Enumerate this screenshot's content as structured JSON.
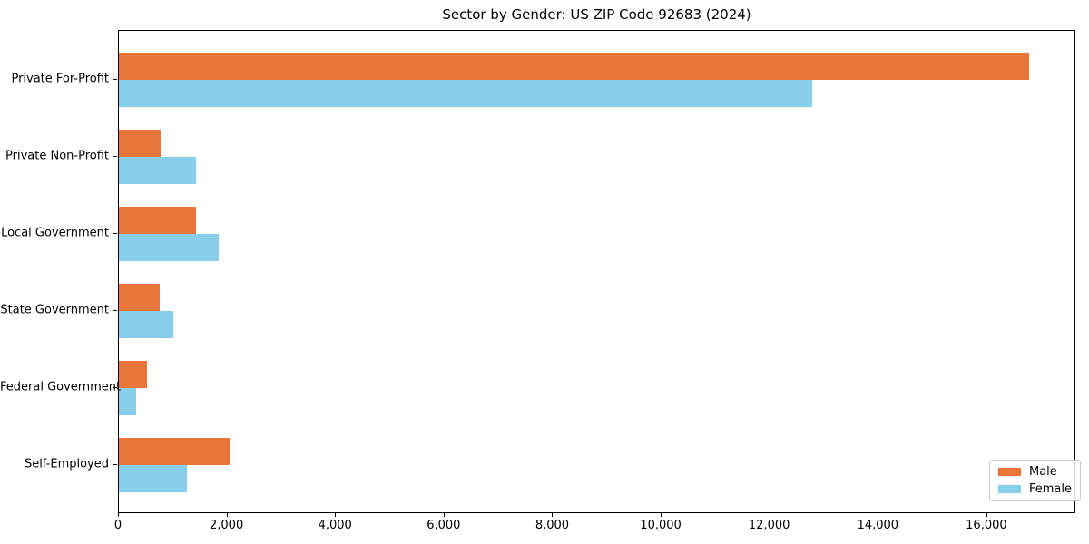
{
  "figure": {
    "title": "Sector by Gender: US ZIP Code 92683 (2024)"
  },
  "chart_data": {
    "type": "bar",
    "orientation": "horizontal",
    "title": "Sector by Gender: US ZIP Code 92683 (2024)",
    "categories": [
      "Private For-Profit",
      "Private Non-Profit",
      "Local Government",
      "State Government",
      "Federal Government",
      "Self-Employed"
    ],
    "series": [
      {
        "name": "Male",
        "color": "#e8763c",
        "values": [
          16800,
          770,
          1420,
          750,
          520,
          2040
        ]
      },
      {
        "name": "Female",
        "color": "#87ceeb",
        "values": [
          12800,
          1430,
          1850,
          1000,
          320,
          1250
        ]
      }
    ],
    "xlabel": "",
    "ylabel": "",
    "xlim": [
      0,
      17640
    ],
    "xticks": [
      0,
      2000,
      4000,
      6000,
      8000,
      10000,
      12000,
      14000,
      16000
    ],
    "xtick_labels": [
      "0",
      "2,000",
      "4,000",
      "6,000",
      "8,000",
      "10,000",
      "12,000",
      "14,000",
      "16,000"
    ],
    "grid": false,
    "legend": {
      "position": "lower right",
      "entries": [
        "Male",
        "Female"
      ]
    },
    "colors": {
      "male": "#e8763c",
      "female": "#87ceeb",
      "spine": "#000000",
      "background": "#ffffff"
    }
  }
}
